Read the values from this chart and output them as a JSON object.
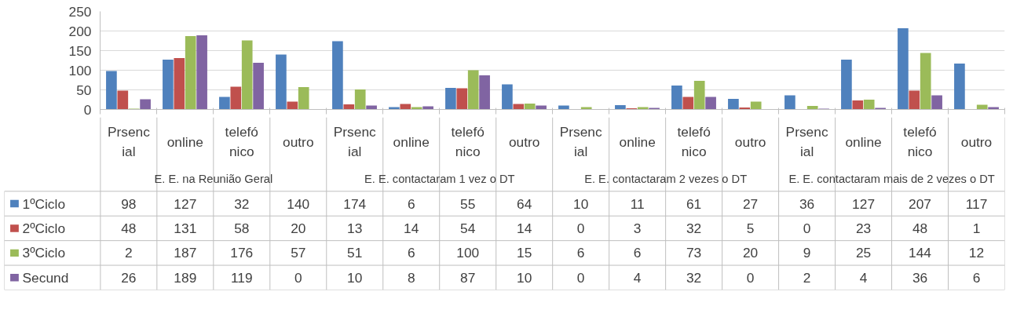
{
  "chart_data": {
    "type": "bar",
    "categories": [
      "Prsencial",
      "online",
      "telefónico",
      "outro",
      "Prsencial",
      "online",
      "telefónico",
      "outro",
      "Prsencial",
      "online",
      "telefónico",
      "outro",
      "Prsencial",
      "online",
      "telefónico",
      "outro"
    ],
    "annotations": [
      "E. E. na Reunião Geral",
      "E. E. contactaram 1 vez o DT",
      "E. E. contactaram 2 vezes o DT",
      "E. E. contactaram mais de 2 vezes o DT"
    ],
    "series": [
      {
        "name": "1ºCiclo",
        "color": "#4f81bd",
        "values": [
          98,
          127,
          32,
          140,
          174,
          6,
          55,
          64,
          10,
          11,
          61,
          27,
          36,
          127,
          207,
          117
        ]
      },
      {
        "name": "2ºCiclo",
        "color": "#c0504d",
        "values": [
          48,
          131,
          58,
          20,
          13,
          14,
          54,
          14,
          0,
          3,
          32,
          5,
          0,
          23,
          48,
          1
        ]
      },
      {
        "name": "3ºCiclo",
        "color": "#9bbb59",
        "values": [
          2,
          187,
          176,
          57,
          51,
          6,
          100,
          15,
          6,
          6,
          73,
          20,
          9,
          25,
          144,
          12
        ]
      },
      {
        "name": "Secund",
        "color": "#8064a2",
        "values": [
          26,
          189,
          119,
          0,
          10,
          8,
          87,
          10,
          0,
          4,
          32,
          0,
          2,
          4,
          36,
          6
        ]
      }
    ],
    "ylim": [
      0,
      250
    ],
    "yticks": [
      0,
      50,
      100,
      150,
      200,
      250
    ],
    "grid": "y",
    "data_labels": true,
    "legend": "bottom"
  }
}
